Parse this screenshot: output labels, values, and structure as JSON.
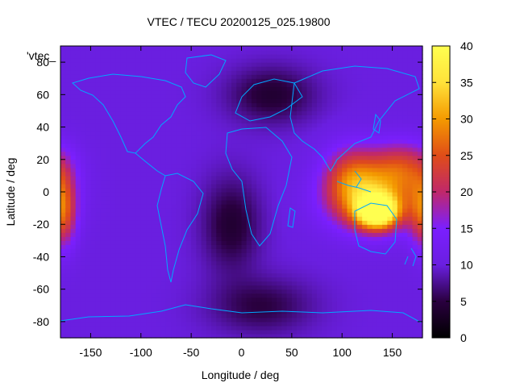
{
  "chart_data": {
    "type": "heatmap",
    "title": "VTEC / TECU 20200125_025.19800",
    "xlabel": "Longitude / deg",
    "ylabel": "Latitude / deg",
    "legend_label": "'vtec_",
    "xlim": [
      -180,
      180
    ],
    "ylim": [
      -90,
      90
    ],
    "xticks": [
      -150,
      -100,
      -50,
      0,
      50,
      100,
      150
    ],
    "yticks": [
      -80,
      -60,
      -40,
      -20,
      0,
      20,
      40,
      60,
      80
    ],
    "colorbar": {
      "range": [
        0,
        40
      ],
      "ticks": [
        0,
        5,
        10,
        15,
        20,
        25,
        30,
        35,
        40
      ],
      "palette": [
        "#000000",
        "#2a003f",
        "#6a1fe0",
        "#7b1fff",
        "#c0286a",
        "#e04d18",
        "#f49a00",
        "#ffe23a",
        "#ffff50"
      ]
    },
    "coastline_color": "#00a8ff",
    "background_tec": 10,
    "features": [
      {
        "lon": 135,
        "lat": -12,
        "tec": 39,
        "sigma_lon": 14,
        "sigma_lat": 7
      },
      {
        "lon": 130,
        "lat": -5,
        "tec": 26,
        "sigma_lon": 32,
        "sigma_lat": 14
      },
      {
        "lon": 110,
        "lat": 10,
        "tec": 22,
        "sigma_lon": 20,
        "sigma_lat": 14
      },
      {
        "lon": 160,
        "lat": 15,
        "tec": 22,
        "sigma_lon": 22,
        "sigma_lat": 12
      },
      {
        "lon": -178,
        "lat": -12,
        "tec": 24,
        "sigma_lon": 10,
        "sigma_lat": 16
      },
      {
        "lon": 30,
        "lat": 60,
        "tec": 4,
        "sigma_lon": 30,
        "sigma_lat": 12
      },
      {
        "lon": -10,
        "lat": -20,
        "tec": 4,
        "sigma_lon": 20,
        "sigma_lat": 20
      },
      {
        "lon": 20,
        "lat": -70,
        "tec": 5,
        "sigma_lon": 35,
        "sigma_lat": 12
      }
    ]
  }
}
